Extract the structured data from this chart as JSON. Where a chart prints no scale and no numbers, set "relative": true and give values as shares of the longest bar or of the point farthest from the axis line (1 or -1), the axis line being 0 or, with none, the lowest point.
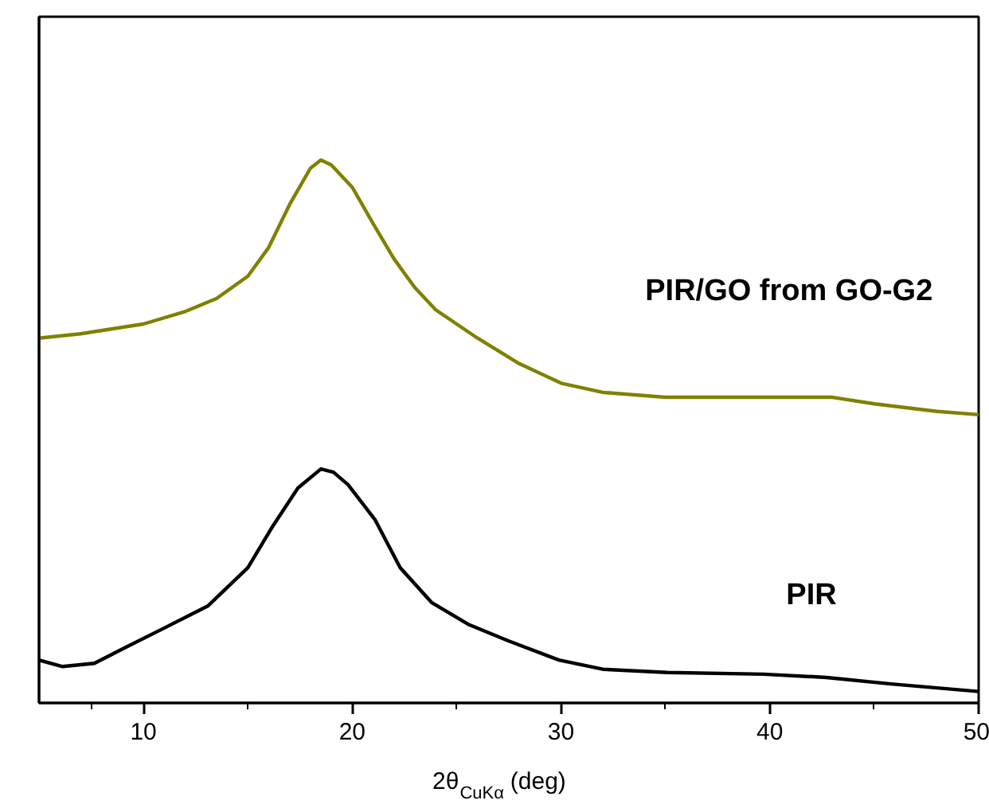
{
  "chart_data": {
    "type": "line",
    "relative": true,
    "xlabel": "2θ$_{CuKα}$ (deg)",
    "xlim": [
      5,
      50
    ],
    "xticks": [
      10,
      20,
      30,
      40,
      50
    ],
    "grid": false,
    "marker": "none",
    "line_style": "solid",
    "series": [
      {
        "name": "PIR",
        "color": "#000000",
        "x": [
          5.0,
          6.13,
          7.65,
          9.18,
          11.0,
          13.1,
          15.0,
          16.2,
          17.4,
          18.5,
          19.1,
          19.8,
          21.1,
          22.3,
          23.8,
          25.6,
          27.5,
          29.9,
          32.0,
          35.1,
          39.7,
          42.7,
          45.8,
          50.0
        ],
        "values": [
          0.079,
          0.067,
          0.073,
          0.103,
          0.138,
          0.179,
          0.249,
          0.326,
          0.396,
          0.431,
          0.425,
          0.402,
          0.337,
          0.249,
          0.185,
          0.144,
          0.114,
          0.079,
          0.062,
          0.056,
          0.053,
          0.047,
          0.035,
          0.021
        ]
      },
      {
        "name": "PIR/GO from GO-G2",
        "color": "#808000",
        "x": [
          5,
          7,
          10,
          12,
          13.5,
          15,
          16,
          17,
          18,
          18.5,
          19,
          20,
          21,
          22,
          23,
          24,
          26,
          28,
          30,
          32,
          35,
          40,
          43,
          45,
          48,
          50
        ],
        "values": [
          0.672,
          0.68,
          0.698,
          0.721,
          0.745,
          0.786,
          0.839,
          0.918,
          0.985,
          1.0,
          0.991,
          0.95,
          0.883,
          0.818,
          0.765,
          0.724,
          0.672,
          0.625,
          0.589,
          0.572,
          0.563,
          0.563,
          0.563,
          0.551,
          0.537,
          0.531
        ]
      }
    ]
  }
}
